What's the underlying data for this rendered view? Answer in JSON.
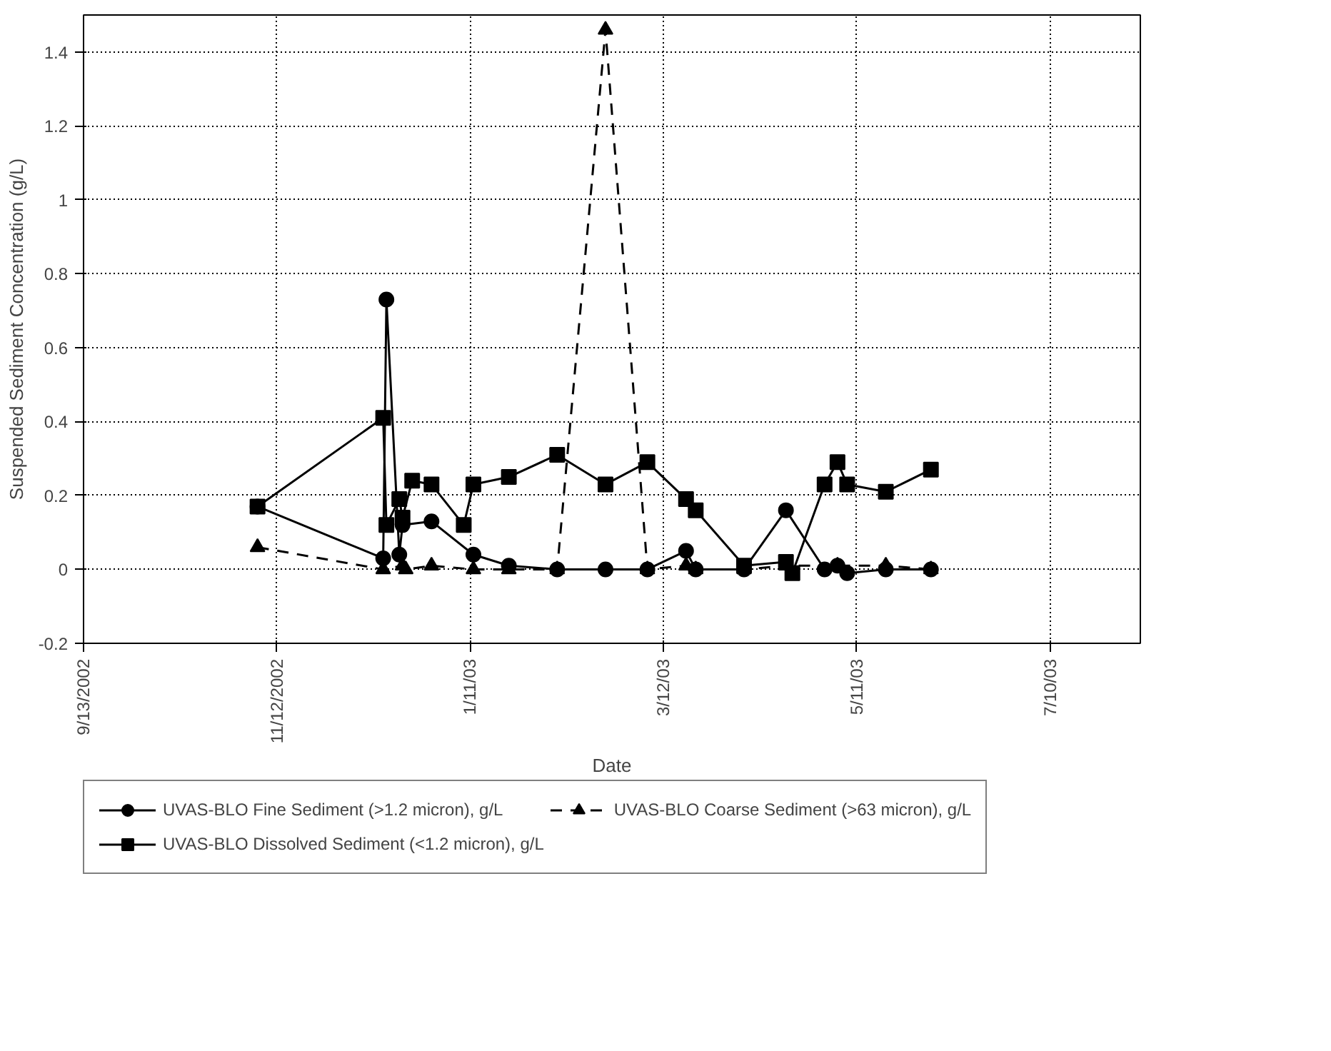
{
  "chart_data": {
    "type": "line",
    "xlabel": "Date",
    "ylabel": "Suspended Sediment Concentration (g/L)",
    "xlim": [
      "2002-09-13",
      "2003-08-07"
    ],
    "ylim": [
      -0.2,
      1.5
    ],
    "xticks": [
      {
        "value": "2002-09-13",
        "label": "9/13/2002"
      },
      {
        "value": "2002-11-12",
        "label": "11/12/2002"
      },
      {
        "value": "2003-01-11",
        "label": "1/11/03"
      },
      {
        "value": "2003-03-12",
        "label": "3/12/03"
      },
      {
        "value": "2003-05-11",
        "label": "5/11/03"
      },
      {
        "value": "2003-07-10",
        "label": "7/10/03"
      }
    ],
    "yticks": [
      -0.2,
      0,
      0.2,
      0.4,
      0.6,
      0.8,
      1,
      1.2,
      1.4
    ],
    "grid": true,
    "legend": "bottom",
    "series": [
      {
        "name": "UVAS-BLO Fine Sediment (>1.2 micron), g/L",
        "color": "#000000",
        "marker": "circle",
        "line_style": "solid",
        "x": [
          "2002-11-06",
          "2002-12-15",
          "2002-12-16",
          "2002-12-20",
          "2002-12-21",
          "2002-12-30",
          "2003-01-12",
          "2003-01-23",
          "2003-02-07",
          "2003-02-22",
          "2003-03-07",
          "2003-03-19",
          "2003-03-22",
          "2003-04-06",
          "2003-04-19",
          "2003-05-01",
          "2003-05-05",
          "2003-05-08",
          "2003-05-20",
          "2003-06-03"
        ],
        "values": [
          0.17,
          0.03,
          0.73,
          0.04,
          0.12,
          0.13,
          0.04,
          0.01,
          0.0,
          0.0,
          0.0,
          0.05,
          0.0,
          0.0,
          0.16,
          0.0,
          0.01,
          -0.01,
          0.0,
          0.0
        ]
      },
      {
        "name": "UVAS-BLO Coarse Sediment (>63 micron), g/L",
        "color": "#000000",
        "marker": "triangle",
        "line_style": "dashed",
        "x": [
          "2002-11-06",
          "2002-12-15",
          "2002-12-21",
          "2002-12-22",
          "2002-12-30",
          "2003-01-12",
          "2003-01-23",
          "2003-02-07",
          "2003-02-22",
          "2003-03-07",
          "2003-03-19",
          "2003-03-22",
          "2003-04-06",
          "2003-04-19",
          "2003-05-05",
          "2003-05-20",
          "2003-06-03"
        ],
        "values": [
          0.06,
          0.0,
          0.01,
          0.0,
          0.01,
          0.0,
          0.0,
          0.0,
          1.46,
          0.0,
          0.01,
          0.0,
          0.0,
          0.01,
          0.01,
          0.01,
          0.0
        ]
      },
      {
        "name": "UVAS-BLO Dissolved Sediment (<1.2 micron), g/L",
        "color": "#000000",
        "marker": "square",
        "line_style": "solid",
        "x": [
          "2002-11-06",
          "2002-12-15",
          "2002-12-16",
          "2002-12-20",
          "2002-12-21",
          "2002-12-24",
          "2002-12-30",
          "2003-01-09",
          "2003-01-12",
          "2003-01-23",
          "2003-02-07",
          "2003-02-22",
          "2003-03-07",
          "2003-03-19",
          "2003-03-22",
          "2003-04-06",
          "2003-04-19",
          "2003-04-21",
          "2003-05-01",
          "2003-05-05",
          "2003-05-08",
          "2003-05-20",
          "2003-06-03"
        ],
        "values": [
          0.17,
          0.41,
          0.12,
          0.19,
          0.14,
          0.24,
          0.23,
          0.12,
          0.23,
          0.25,
          0.31,
          0.23,
          0.29,
          0.19,
          0.16,
          0.01,
          0.02,
          -0.01,
          0.23,
          0.29,
          0.23,
          0.21,
          0.27
        ]
      }
    ]
  }
}
